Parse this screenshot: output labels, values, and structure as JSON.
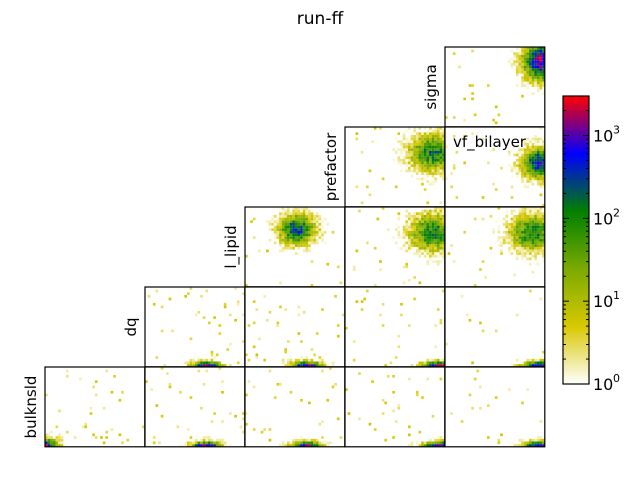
{
  "chart_data": {
    "type": "heatmap",
    "title": "run-ff",
    "layout": "lower-triangular corner plot of pairwise 2D histograms",
    "variables": [
      "bulknsld",
      "dq",
      "l_lipid",
      "prefactor",
      "sigma",
      "vf_bilayer"
    ],
    "row_labels": [
      "sigma",
      "prefactor",
      "l_lipid",
      "dq",
      "bulknsld"
    ],
    "diagonal_label": "vf_bilayer",
    "grid": false,
    "colorbar": {
      "scale": "log",
      "range": [
        1,
        3000
      ],
      "ticks": [
        {
          "value": 1,
          "base": "10",
          "exp": "0"
        },
        {
          "value": 10,
          "base": "10",
          "exp": "1"
        },
        {
          "value": 100,
          "base": "10",
          "exp": "2"
        },
        {
          "value": 1000,
          "base": "10",
          "exp": "3"
        }
      ],
      "colors": [
        "#ffffff",
        "#d8c800",
        "#7aaa00",
        "#008000",
        "#0000ff",
        "#ff0000"
      ],
      "placement": "right"
    },
    "panels": [
      {
        "row": 0,
        "col": 4,
        "x": "vf_bilayer",
        "y": "sigma",
        "density": "concentrated at high x, high y"
      },
      {
        "row": 1,
        "col": 3,
        "x": "prefactor",
        "y": "prefactor",
        "density": "concentrated at upper-right"
      },
      {
        "row": 1,
        "col": 4,
        "x": "vf_bilayer",
        "y": "prefactor",
        "density": "concentrated at right, mid-upper"
      },
      {
        "row": 2,
        "col": 2,
        "x": "l_lipid",
        "y": "l_lipid",
        "density": "blob center-left"
      },
      {
        "row": 2,
        "col": 3,
        "x": "prefactor",
        "y": "l_lipid",
        "density": "concentrated at upper-right"
      },
      {
        "row": 2,
        "col": 4,
        "x": "vf_bilayer",
        "y": "l_lipid",
        "density": "concentrated at upper-right"
      },
      {
        "row": 3,
        "col": 1,
        "x": "dq",
        "y": "dq",
        "density": "bottom band, blue near x~0.6"
      },
      {
        "row": 3,
        "col": 2,
        "x": "l_lipid",
        "y": "dq",
        "density": "bottom band, blue near x~0.6"
      },
      {
        "row": 3,
        "col": 3,
        "x": "prefactor",
        "y": "dq",
        "density": "bottom band, blue at right"
      },
      {
        "row": 3,
        "col": 4,
        "x": "vf_bilayer",
        "y": "dq",
        "density": "bottom band, blue at right"
      },
      {
        "row": 4,
        "col": 0,
        "x": "bulknsld",
        "y": "bulknsld",
        "density": "bottom-left corner"
      },
      {
        "row": 4,
        "col": 1,
        "x": "dq",
        "y": "bulknsld",
        "density": "bottom band, blue near x~0.6"
      },
      {
        "row": 4,
        "col": 2,
        "x": "l_lipid",
        "y": "bulknsld",
        "density": "bottom band, blue near x~0.6"
      },
      {
        "row": 4,
        "col": 3,
        "x": "prefactor",
        "y": "bulknsld",
        "density": "bottom band, blue at right"
      },
      {
        "row": 4,
        "col": 4,
        "x": "vf_bilayer",
        "y": "bulknsld",
        "density": "bottom band, blue at right"
      }
    ]
  }
}
